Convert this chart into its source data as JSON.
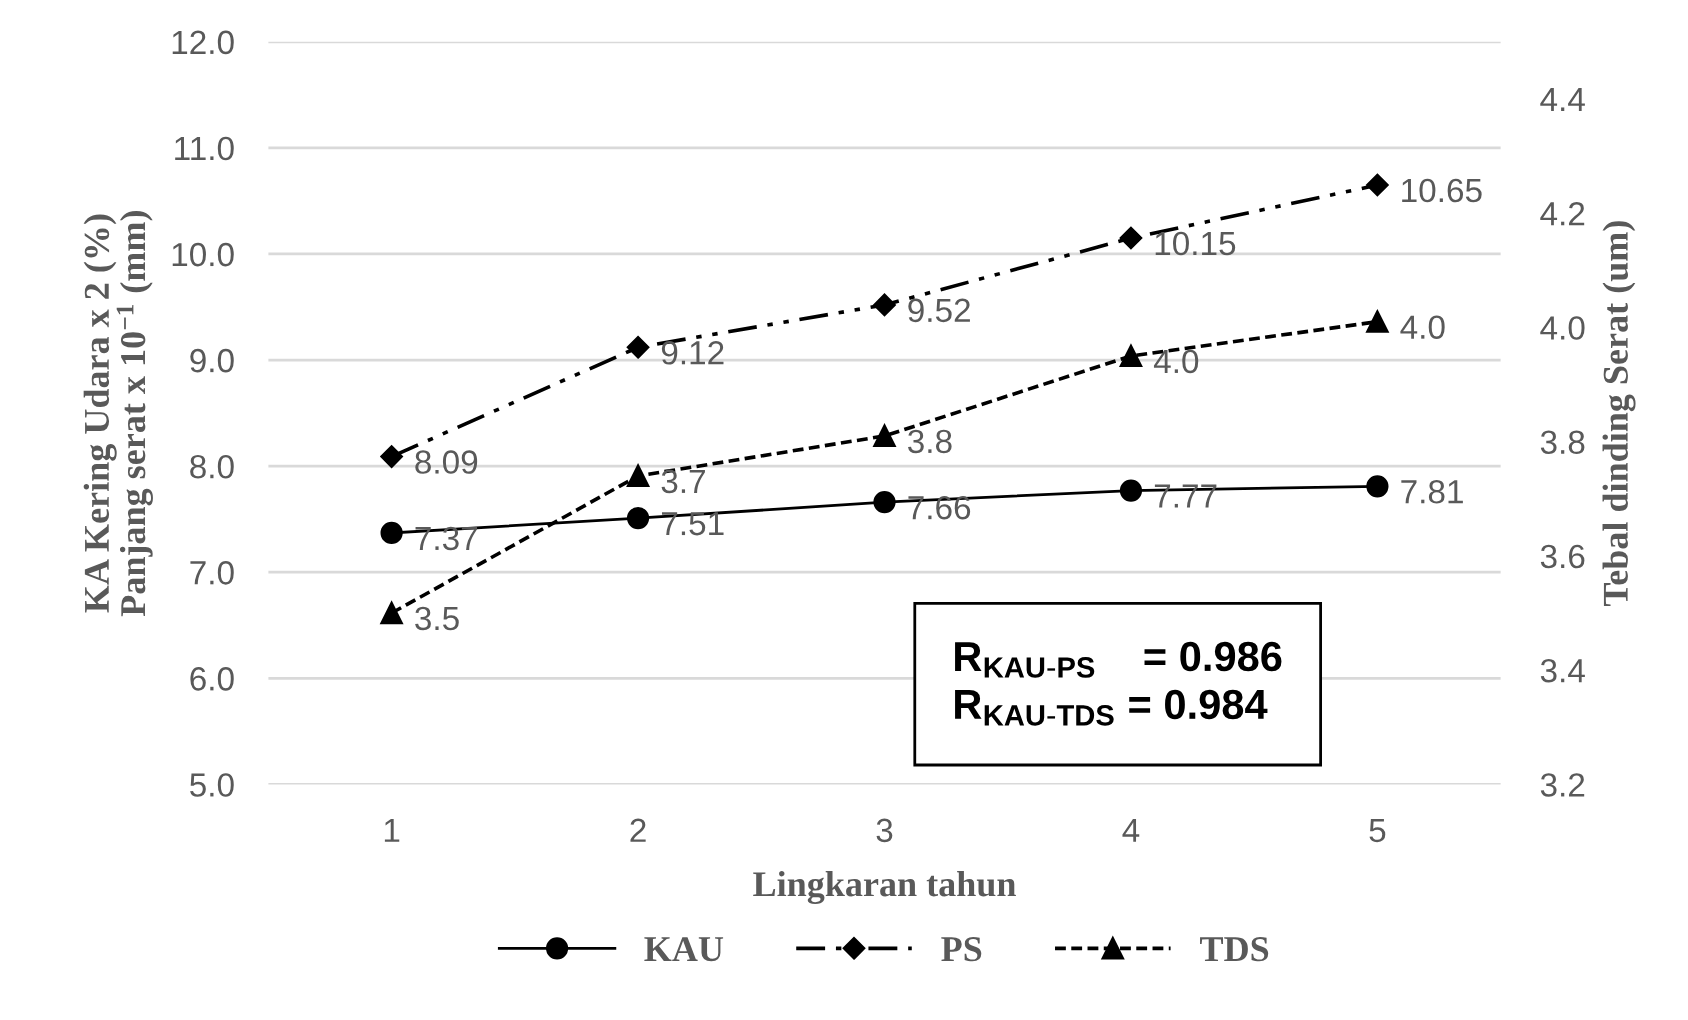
{
  "chart_data": {
    "type": "line",
    "xlabel": "Lingkaran tahun",
    "ylabel": "KA Kering Udara x 2 (%)\nPanjang serat x 10$^{−1}$ (mm)",
    "y2label": "Tebal dinding Serat (um)",
    "categories": [
      "1",
      "2",
      "3",
      "4",
      "5"
    ],
    "series": [
      {
        "name": "KAU",
        "color": "#000000",
        "marker": "circle",
        "line_style": "solid",
        "values": [
          7.37,
          7.51,
          7.66,
          7.77,
          7.81
        ],
        "value_labels": [
          "7.37",
          "7.51",
          "7.66",
          "7.77",
          "7.81"
        ]
      },
      {
        "name": "PS",
        "color": "#000000",
        "marker": "diamond",
        "line_style": "dashdot",
        "values": [
          8.09,
          9.12,
          9.52,
          10.15,
          10.65
        ],
        "value_labels": [
          "8.09",
          "9.12",
          "9.52",
          "10.15",
          "10.65"
        ]
      },
      {
        "name": "TDS",
        "color": "#000000",
        "marker": "triangle",
        "line_style": "dashed",
        "axis": "y2",
        "values": [
          3.5,
          3.74,
          3.81,
          3.95,
          4.01
        ],
        "value_labels": [
          "3.5",
          "3.7",
          "3.8",
          "4.0",
          "4.0"
        ]
      }
    ],
    "ylim": [
      5.0,
      12.0
    ],
    "yticks": [
      {
        "value": 5,
        "label": "5.0"
      },
      {
        "value": 6,
        "label": "6.0"
      },
      {
        "value": 7,
        "label": "7.0"
      },
      {
        "value": 8,
        "label": "8.0"
      },
      {
        "value": 9,
        "label": "9.0"
      },
      {
        "value": 10,
        "label": "10.0"
      },
      {
        "value": 11,
        "label": "11.0"
      },
      {
        "value": 12,
        "label": "12.0"
      }
    ],
    "y2lim": [
      3.2,
      4.5
    ],
    "y2ticks": [
      3.2,
      3.4,
      3.6,
      3.8,
      {
        "value": 4.0,
        "label": "4.0"
      },
      4.2,
      4.4
    ],
    "annotations": [
      "R$_{KAU-PS}$    = 0.986",
      "R$_{KAU-TDS}$ = 0.984"
    ],
    "grid": "y",
    "legend": "bottom"
  }
}
